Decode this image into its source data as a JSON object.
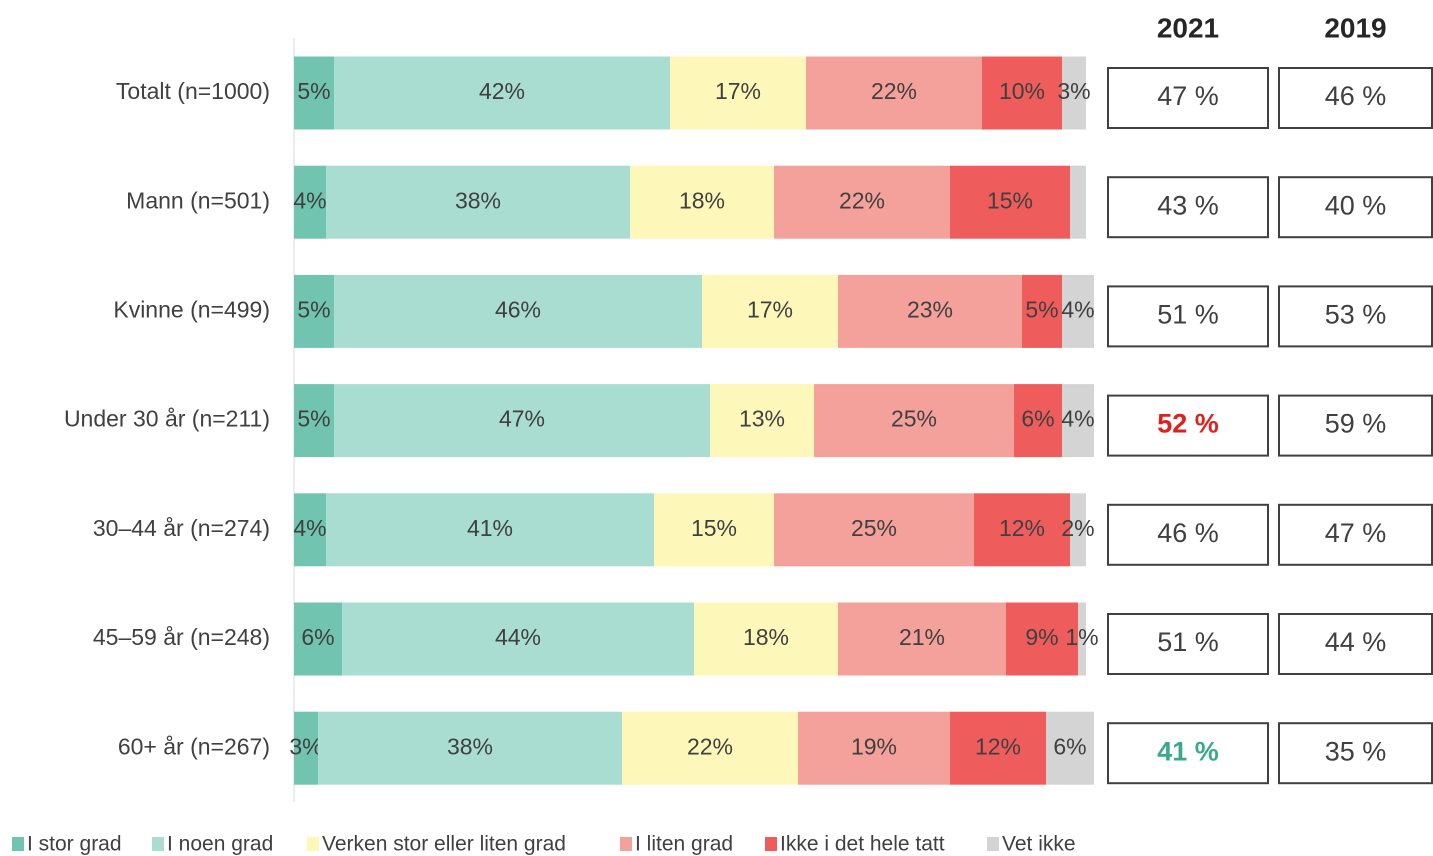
{
  "chart_data": {
    "type": "bar",
    "orientation": "horizontal",
    "stacked": true,
    "categories": [
      "Totalt (n=1000)",
      "Mann (n=501)",
      "Kvinne (n=499)",
      "Under 30 år (n=211)",
      "30–44 år (n=274)",
      "45–59 år (n=248)",
      "60+ år (n=267)"
    ],
    "xlim": [
      0,
      100
    ],
    "series": [
      {
        "name": "I stor grad",
        "color": "#70c4b0",
        "values": [
          5,
          4,
          5,
          5,
          4,
          6,
          3
        ],
        "value_labels": [
          "5%",
          "4%",
          "5%",
          "5%",
          "4%",
          "6%",
          "3%"
        ]
      },
      {
        "name": "I noen grad",
        "color": "#a9ddd1",
        "values": [
          42,
          38,
          46,
          47,
          41,
          44,
          38
        ],
        "value_labels": [
          "42%",
          "38%",
          "46%",
          "47%",
          "41%",
          "44%",
          "38%"
        ]
      },
      {
        "name": "Verken stor eller liten grad",
        "color": "#fdf8ba",
        "values": [
          17,
          18,
          17,
          13,
          15,
          18,
          22
        ],
        "value_labels": [
          "17%",
          "18%",
          "17%",
          "13%",
          "15%",
          "18%",
          "22%"
        ]
      },
      {
        "name": "I liten grad",
        "color": "#f5a19b",
        "values": [
          22,
          22,
          23,
          25,
          25,
          21,
          19
        ],
        "value_labels": [
          "22%",
          "22%",
          "23%",
          "25%",
          "25%",
          "21%",
          "19%"
        ]
      },
      {
        "name": "Ikke i det hele tatt",
        "color": "#ef5c5c",
        "values": [
          10,
          15,
          5,
          6,
          12,
          9,
          12
        ],
        "value_labels": [
          "10%",
          "15%",
          "5%",
          "6%",
          "12%",
          "9%",
          "12%"
        ]
      },
      {
        "name": "Vet ikke",
        "color": "#d4d4d4",
        "values": [
          3,
          2,
          4,
          4,
          2,
          1,
          6
        ],
        "value_labels": [
          "3%",
          null,
          "4%",
          "4%",
          "2%",
          "1%",
          "6%"
        ]
      }
    ],
    "table": [
      {
        "header": "2021",
        "values": [
          47,
          43,
          51,
          52,
          46,
          51,
          41
        ],
        "value_labels": [
          "47 %",
          "43 %",
          "51 %",
          "52 %",
          "46 %",
          "51 %",
          "41 %"
        ],
        "highlights": [
          {
            "index": 3,
            "color": "#e0201c"
          },
          {
            "index": 6,
            "color": "#3aa88c"
          }
        ]
      },
      {
        "header": "2019",
        "values": [
          46,
          40,
          53,
          59,
          47,
          44,
          35
        ],
        "value_labels": [
          "46 %",
          "40 %",
          "53 %",
          "59 %",
          "47 %",
          "44 %",
          "35 %"
        ],
        "highlights": []
      }
    ]
  }
}
